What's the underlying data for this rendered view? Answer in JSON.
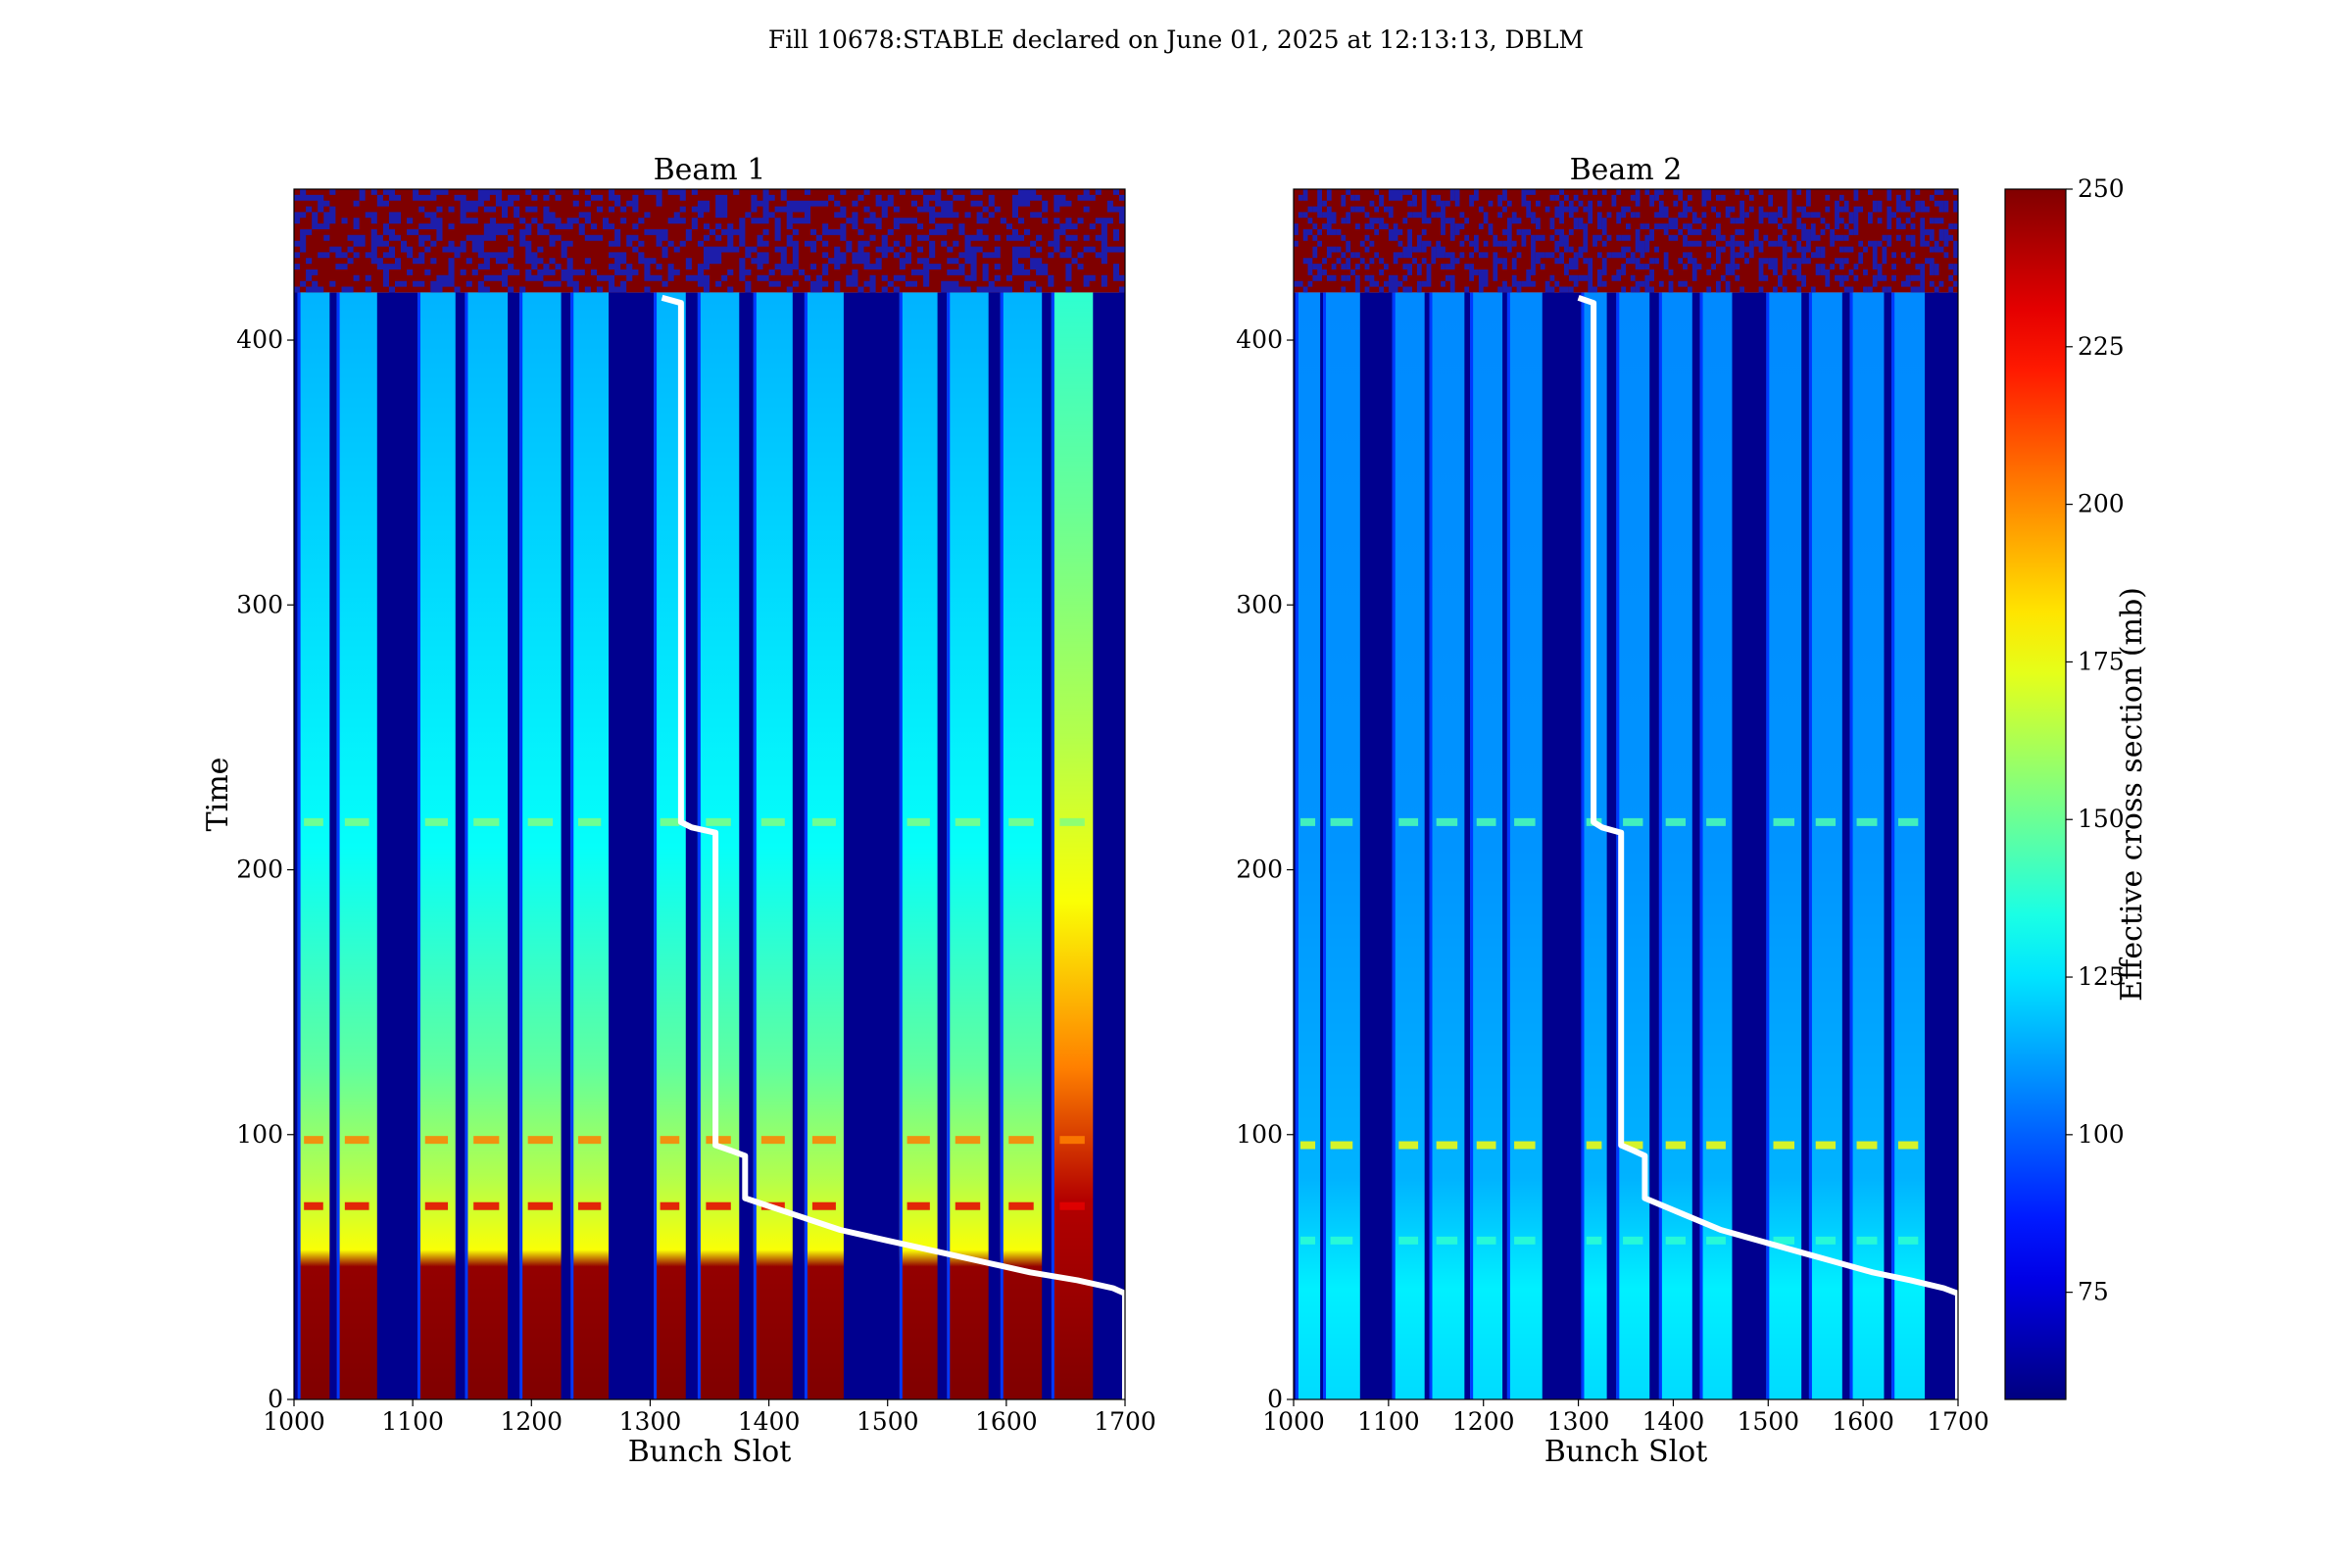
{
  "figure": {
    "suptitle": "Fill 10678:STABLE declared on June 01, 2025 at 12:13:13, DBLM"
  },
  "chart_data": [
    {
      "type": "heatmap",
      "title": "Beam 1",
      "xlabel": "Bunch Slot",
      "ylabel": "Time",
      "xlim": [
        1000,
        1700
      ],
      "ylim": [
        0,
        457
      ],
      "xticks": [
        1000,
        1100,
        1200,
        1300,
        1400,
        1500,
        1600,
        1700
      ],
      "yticks": [
        0,
        100,
        200,
        300,
        400
      ],
      "noise_band_time_range": [
        418,
        457
      ],
      "data_end_time": 418,
      "filled_trains": [
        [
          1003,
          1030
        ],
        [
          1036,
          1070
        ],
        [
          1104,
          1136
        ],
        [
          1144,
          1180
        ],
        [
          1190,
          1225
        ],
        [
          1233,
          1265
        ],
        [
          1303,
          1330
        ],
        [
          1340,
          1375
        ],
        [
          1387,
          1420
        ],
        [
          1430,
          1463
        ],
        [
          1510,
          1542
        ],
        [
          1550,
          1585
        ],
        [
          1595,
          1630
        ],
        [
          1638,
          1673
        ]
      ],
      "white_line": [
        [
          1310,
          416
        ],
        [
          1326,
          414
        ],
        [
          1326,
          218
        ],
        [
          1335,
          216
        ],
        [
          1355,
          214
        ],
        [
          1355,
          96
        ],
        [
          1368,
          94
        ],
        [
          1380,
          92
        ],
        [
          1380,
          76
        ],
        [
          1420,
          70
        ],
        [
          1460,
          64
        ],
        [
          1500,
          60
        ],
        [
          1540,
          56
        ],
        [
          1580,
          52
        ],
        [
          1620,
          48
        ],
        [
          1660,
          45
        ],
        [
          1690,
          42
        ],
        [
          1700,
          40
        ],
        [
          1700,
          0
        ]
      ]
    },
    {
      "type": "heatmap",
      "title": "Beam 2",
      "xlabel": "Bunch Slot",
      "ylabel": "",
      "xlim": [
        1000,
        1700
      ],
      "ylim": [
        0,
        457
      ],
      "xticks": [
        1000,
        1100,
        1200,
        1300,
        1400,
        1500,
        1600,
        1700
      ],
      "yticks": [
        0,
        100,
        200,
        300,
        400
      ],
      "noise_band_time_range": [
        418,
        457
      ],
      "data_end_time": 418,
      "filled_trains": [
        [
          1002,
          1028
        ],
        [
          1031,
          1070
        ],
        [
          1104,
          1138
        ],
        [
          1143,
          1180
        ],
        [
          1186,
          1220
        ],
        [
          1225,
          1262
        ],
        [
          1303,
          1330
        ],
        [
          1340,
          1375
        ],
        [
          1385,
          1420
        ],
        [
          1428,
          1462
        ],
        [
          1498,
          1535
        ],
        [
          1543,
          1578
        ],
        [
          1586,
          1622
        ],
        [
          1630,
          1665
        ]
      ],
      "white_line": [
        [
          1300,
          416
        ],
        [
          1316,
          414
        ],
        [
          1316,
          218
        ],
        [
          1325,
          216
        ],
        [
          1345,
          214
        ],
        [
          1345,
          96
        ],
        [
          1358,
          94
        ],
        [
          1370,
          92
        ],
        [
          1370,
          76
        ],
        [
          1410,
          70
        ],
        [
          1450,
          64
        ],
        [
          1490,
          60
        ],
        [
          1530,
          56
        ],
        [
          1570,
          52
        ],
        [
          1610,
          48
        ],
        [
          1650,
          45
        ],
        [
          1685,
          42
        ],
        [
          1700,
          40
        ],
        [
          1700,
          0
        ]
      ]
    }
  ],
  "colorbar": {
    "label": "Effective cross section (mb)",
    "range": [
      58,
      250
    ],
    "ticks": [
      75,
      100,
      125,
      150,
      175,
      200,
      225,
      250
    ],
    "colormap": "jet"
  },
  "colors": {
    "background_dark": "#00008f",
    "line": "#ffffff"
  }
}
